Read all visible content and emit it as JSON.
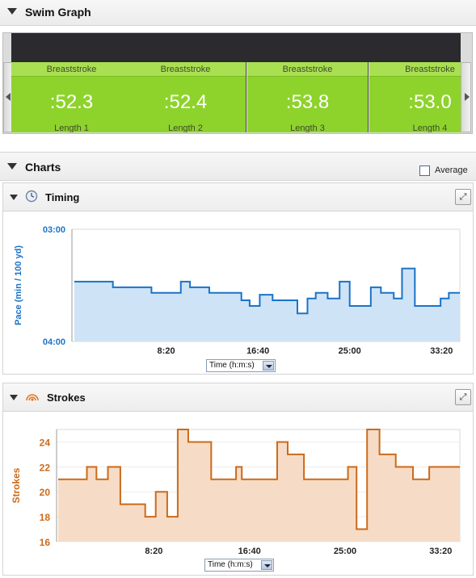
{
  "swim_graph": {
    "title": "Swim Graph",
    "lengths": [
      {
        "stroke": "Breaststroke",
        "time": ":52.3",
        "label": "Length 1"
      },
      {
        "stroke": "Breaststroke",
        "time": ":52.4",
        "label": "Length 2"
      },
      {
        "stroke": "Breaststroke",
        "time": ":53.8",
        "label": "Length 3"
      },
      {
        "stroke": "Breaststroke",
        "time": ":53.0",
        "label": "Length 4"
      }
    ]
  },
  "charts": {
    "title": "Charts",
    "average_label": "Average",
    "timing": {
      "title": "Timing",
      "icon": "clock-icon",
      "x_selector": "Time (h:m:s)"
    },
    "strokes": {
      "title": "Strokes",
      "icon": "strokes-icon",
      "x_selector": "Time (h:m:s)"
    }
  },
  "chart_data": [
    {
      "type": "area",
      "title": "Timing",
      "ylabel": "Pace (min / 100 yd)",
      "xlabel": "Time (h:m:s)",
      "x_ticks": [
        "8:20",
        "16:40",
        "25:00",
        "33:20"
      ],
      "y_ticks": [
        "03:00",
        "04:00"
      ],
      "y_inverted": true,
      "ylim_seconds": [
        180,
        240
      ],
      "xlim_seconds": [
        0,
        2100
      ],
      "color": "#1a73c8",
      "fill": "#cfe3f7",
      "series": [
        {
          "x_seconds": [
            0,
            105,
            210,
            315,
            420,
            525,
            580,
            630,
            735,
            840,
            910,
            955,
            1010,
            1080,
            1165,
            1215,
            1270,
            1315,
            1380,
            1445,
            1500,
            1565,
            1615,
            1670,
            1740,
            1785,
            1855,
            1940,
            1995,
            2040,
            2100
          ],
          "pace_seconds": [
            208,
            208,
            211,
            211,
            214,
            214,
            208,
            211,
            214,
            214,
            218,
            221,
            215,
            218,
            218,
            225,
            217,
            214,
            217,
            208,
            221,
            221,
            211,
            214,
            217,
            201,
            221,
            221,
            217,
            214,
            214
          ]
        }
      ]
    },
    {
      "type": "area",
      "title": "Strokes",
      "ylabel": "Strokes",
      "xlabel": "Time (h:m:s)",
      "x_ticks": [
        "8:20",
        "16:40",
        "25:00",
        "33:20"
      ],
      "y_ticks": [
        16,
        18,
        20,
        22,
        24
      ],
      "ylim": [
        16,
        25
      ],
      "xlim_seconds": [
        0,
        2100
      ],
      "color": "#cc6a1a",
      "fill": "#f6dcc6",
      "series": [
        {
          "x_seconds": [
            0,
            105,
            150,
            200,
            260,
            325,
            395,
            455,
            510,
            570,
            625,
            680,
            740,
            800,
            860,
            930,
            960,
            1010,
            1080,
            1145,
            1200,
            1285,
            1395,
            1460,
            1515,
            1560,
            1615,
            1680,
            1765,
            1800,
            1855,
            1940
          ],
          "strokes": [
            21,
            21,
            22,
            21,
            22,
            19,
            19,
            18,
            20,
            18,
            25,
            24,
            24,
            21,
            21,
            22,
            21,
            21,
            21,
            24,
            23,
            21,
            21,
            21,
            22,
            17,
            25,
            23,
            22,
            22,
            21,
            22
          ]
        }
      ]
    }
  ]
}
